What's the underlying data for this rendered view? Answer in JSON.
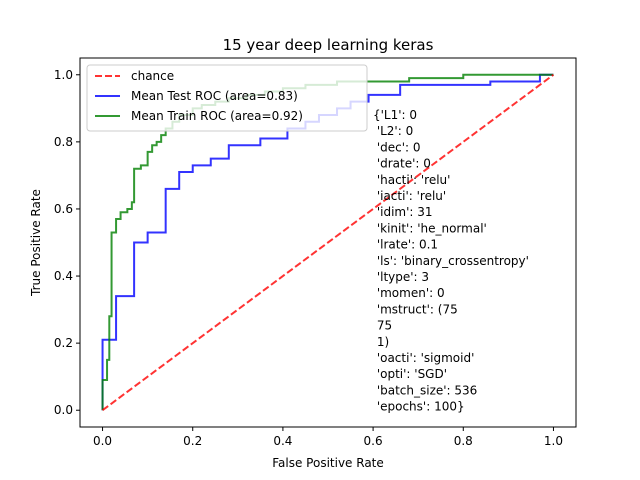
{
  "chart_data": {
    "type": "line",
    "title": "15 year deep learning keras",
    "xlabel": "False Positive Rate",
    "ylabel": "True Positive Rate",
    "xlim": [
      -0.05,
      1.05
    ],
    "ylim": [
      -0.05,
      1.05
    ],
    "xticks": [
      0.0,
      0.2,
      0.4,
      0.6,
      0.8,
      1.0
    ],
    "yticks": [
      0.0,
      0.2,
      0.4,
      0.6,
      0.8,
      1.0
    ],
    "xtick_labels": [
      "0.0",
      "0.2",
      "0.4",
      "0.6",
      "0.8",
      "1.0"
    ],
    "ytick_labels": [
      "0.0",
      "0.2",
      "0.4",
      "0.6",
      "0.8",
      "1.0"
    ],
    "grid": false,
    "legend_position": "top-left",
    "series": [
      {
        "name": "chance",
        "color": "#ff0000",
        "dashed": true,
        "points": [
          [
            0,
            0
          ],
          [
            1,
            1
          ]
        ]
      },
      {
        "name": "Mean Test ROC (area=0.83)",
        "color": "#0000ff",
        "dashed": false,
        "points": [
          [
            0,
            0
          ],
          [
            0,
            0.21
          ],
          [
            0.03,
            0.21
          ],
          [
            0.03,
            0.34
          ],
          [
            0.07,
            0.34
          ],
          [
            0.07,
            0.5
          ],
          [
            0.1,
            0.5
          ],
          [
            0.1,
            0.53
          ],
          [
            0.14,
            0.53
          ],
          [
            0.14,
            0.66
          ],
          [
            0.17,
            0.66
          ],
          [
            0.17,
            0.71
          ],
          [
            0.2,
            0.71
          ],
          [
            0.2,
            0.73
          ],
          [
            0.24,
            0.73
          ],
          [
            0.24,
            0.75
          ],
          [
            0.28,
            0.75
          ],
          [
            0.28,
            0.79
          ],
          [
            0.35,
            0.79
          ],
          [
            0.35,
            0.81
          ],
          [
            0.41,
            0.81
          ],
          [
            0.41,
            0.84
          ],
          [
            0.45,
            0.84
          ],
          [
            0.45,
            0.86
          ],
          [
            0.48,
            0.86
          ],
          [
            0.48,
            0.88
          ],
          [
            0.52,
            0.88
          ],
          [
            0.52,
            0.9
          ],
          [
            0.55,
            0.9
          ],
          [
            0.55,
            0.92
          ],
          [
            0.59,
            0.92
          ],
          [
            0.59,
            0.94
          ],
          [
            0.66,
            0.94
          ],
          [
            0.66,
            0.97
          ],
          [
            0.86,
            0.97
          ],
          [
            0.86,
            0.98
          ],
          [
            0.97,
            0.98
          ],
          [
            0.97,
            1.0
          ],
          [
            1.0,
            1.0
          ]
        ]
      },
      {
        "name": "Mean Train ROC (area=0.92)",
        "color": "#008000",
        "dashed": false,
        "points": [
          [
            0,
            0
          ],
          [
            0,
            0.09
          ],
          [
            0.01,
            0.09
          ],
          [
            0.01,
            0.15
          ],
          [
            0.015,
            0.15
          ],
          [
            0.015,
            0.28
          ],
          [
            0.02,
            0.28
          ],
          [
            0.02,
            0.53
          ],
          [
            0.03,
            0.53
          ],
          [
            0.03,
            0.57
          ],
          [
            0.04,
            0.57
          ],
          [
            0.04,
            0.59
          ],
          [
            0.055,
            0.59
          ],
          [
            0.055,
            0.6
          ],
          [
            0.065,
            0.6
          ],
          [
            0.065,
            0.62
          ],
          [
            0.07,
            0.62
          ],
          [
            0.07,
            0.72
          ],
          [
            0.085,
            0.72
          ],
          [
            0.085,
            0.73
          ],
          [
            0.1,
            0.73
          ],
          [
            0.1,
            0.77
          ],
          [
            0.11,
            0.77
          ],
          [
            0.11,
            0.79
          ],
          [
            0.12,
            0.79
          ],
          [
            0.12,
            0.8
          ],
          [
            0.13,
            0.8
          ],
          [
            0.13,
            0.82
          ],
          [
            0.14,
            0.82
          ],
          [
            0.14,
            0.84
          ],
          [
            0.155,
            0.84
          ],
          [
            0.155,
            0.86
          ],
          [
            0.17,
            0.86
          ],
          [
            0.17,
            0.88
          ],
          [
            0.2,
            0.88
          ],
          [
            0.2,
            0.9
          ],
          [
            0.22,
            0.9
          ],
          [
            0.22,
            0.91
          ],
          [
            0.25,
            0.91
          ],
          [
            0.25,
            0.92
          ],
          [
            0.28,
            0.92
          ],
          [
            0.28,
            0.93
          ],
          [
            0.32,
            0.93
          ],
          [
            0.32,
            0.94
          ],
          [
            0.36,
            0.94
          ],
          [
            0.36,
            0.95
          ],
          [
            0.4,
            0.95
          ],
          [
            0.4,
            0.96
          ],
          [
            0.45,
            0.96
          ],
          [
            0.45,
            0.97
          ],
          [
            0.52,
            0.97
          ],
          [
            0.52,
            0.98
          ],
          [
            0.68,
            0.98
          ],
          [
            0.68,
            0.99
          ],
          [
            0.8,
            0.99
          ],
          [
            0.8,
            1.0
          ],
          [
            1.0,
            1.0
          ]
        ]
      }
    ],
    "annotation": "{'L1': 0\n 'L2': 0\n 'dec': 0\n 'drate': 0\n 'hacti': 'relu'\n 'iacti': 'relu'\n 'idim': 31\n 'kinit': 'he_normal'\n 'lrate': 0.1\n 'ls': 'binary_crossentropy'\n 'ltype': 3\n 'momen': 0\n 'mstruct': (75\n 75\n 1)\n 'oacti': 'sigmoid'\n 'opti': 'SGD'\n 'batch_size': 536\n 'epochs': 100}"
  }
}
